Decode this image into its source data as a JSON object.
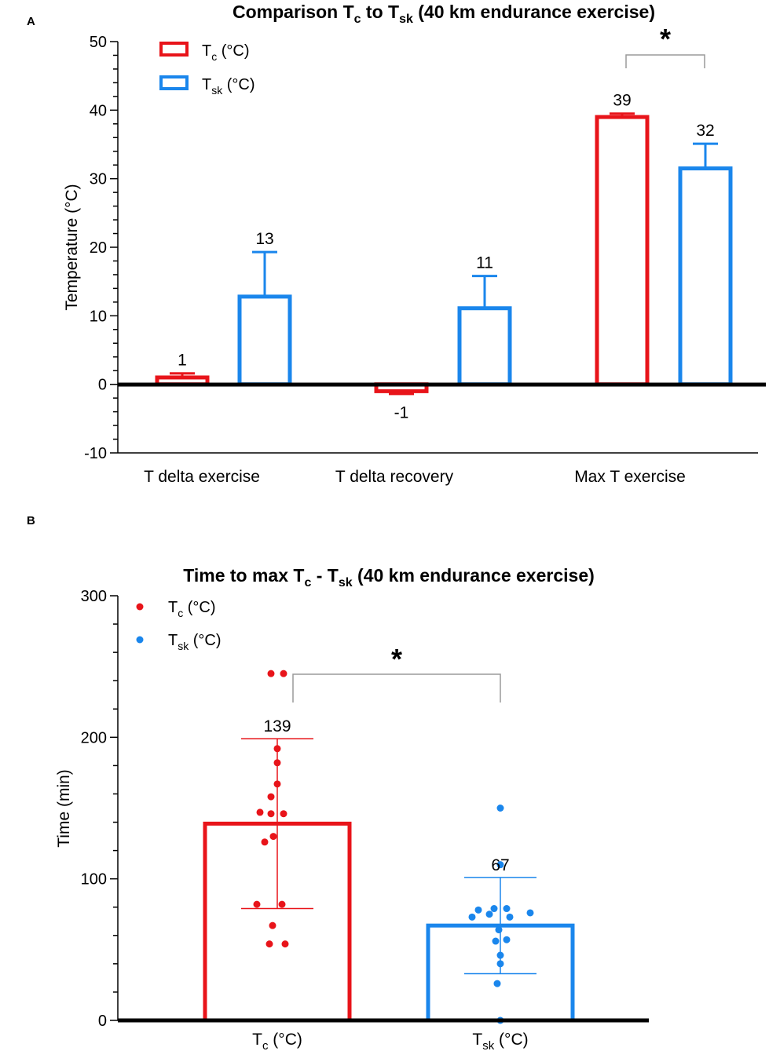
{
  "colors": {
    "tc": "#e8141a",
    "tsk": "#1a86ec",
    "axis": "#000000",
    "bracket": "#9a9a9a"
  },
  "chart_data": [
    {
      "panel": "A",
      "type": "bar",
      "title": {
        "prefix": "Comparison T",
        "sub1": "c",
        "middle": " to T",
        "sub2": "sk",
        "suffix": " (40 km endurance exercise)"
      },
      "ylabel": "Temperature (°C)",
      "xlabel": "",
      "ylim": [
        -10,
        50
      ],
      "yticks": [
        -10,
        0,
        10,
        20,
        30,
        40,
        50
      ],
      "ytick_labels": [
        "-10",
        "0",
        "10",
        "20",
        "30",
        "40",
        "50"
      ],
      "categories": [
        "T delta exercise",
        "T delta recovery",
        "Max T exercise"
      ],
      "legend": [
        {
          "base": "T",
          "sub": "c",
          "unit": " (°C)"
        },
        {
          "base": "T",
          "sub": "sk",
          "unit": " (°C)"
        }
      ],
      "series": [
        {
          "name": "Tc (°C)",
          "values": [
            1,
            -1,
            39
          ],
          "errors": [
            0.6,
            0.4,
            0.5
          ],
          "labels": [
            "1",
            "-1",
            "39"
          ]
        },
        {
          "name": "Tsk (°C)",
          "values": [
            12.8,
            11.1,
            31.5
          ],
          "errors": [
            6.5,
            4.7,
            3.6
          ],
          "labels": [
            "13",
            "11",
            "32"
          ]
        }
      ],
      "significance": {
        "category": "Max T exercise",
        "marker": "*"
      }
    },
    {
      "panel": "B",
      "type": "bar",
      "title": {
        "prefix": "Time to max T",
        "sub1": "c",
        "middle": " - T",
        "sub2": "sk",
        "suffix": " (40 km endurance exercise)"
      },
      "ylabel": "Time (min)",
      "xlabel": "",
      "ylim": [
        0,
        300
      ],
      "yticks": [
        0,
        100,
        200,
        300
      ],
      "ytick_labels": [
        "0",
        "100",
        "200",
        "300"
      ],
      "categories": [
        {
          "base": "T",
          "sub": "c",
          "unit": " (°C)"
        },
        {
          "base": "T",
          "sub": "sk",
          "unit": " (°C)"
        }
      ],
      "legend": [
        {
          "base": "T",
          "sub": "c",
          "unit": " (°C)"
        },
        {
          "base": "T",
          "sub": "sk",
          "unit": " (°C)"
        }
      ],
      "series": [
        {
          "name": "Tc (°C)",
          "mean": 139,
          "sd": 60,
          "label": "139",
          "points": [
            245,
            245,
            192,
            182,
            167,
            158,
            147,
            146,
            146,
            130,
            126,
            82,
            82,
            67,
            54,
            54
          ]
        },
        {
          "name": "Tsk (°C)",
          "mean": 67,
          "sd": 34,
          "label": "67",
          "points": [
            150,
            110,
            79,
            79,
            78,
            76,
            75,
            73,
            73,
            64,
            57,
            56,
            46,
            40,
            26,
            0
          ]
        }
      ],
      "significance": {
        "marker": "*"
      }
    }
  ]
}
